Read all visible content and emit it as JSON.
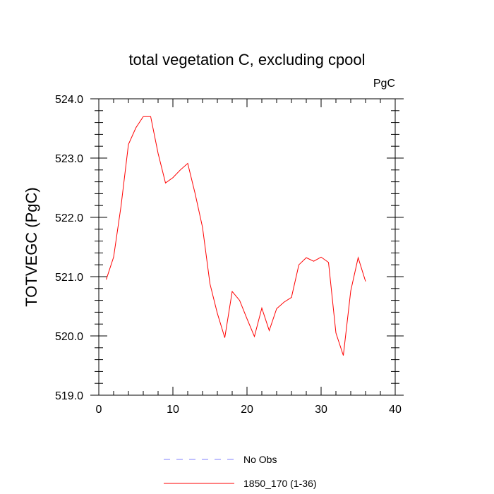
{
  "chart_data": {
    "type": "line",
    "title": "total vegetation C, excluding cpool",
    "units_label": "PgC",
    "ylabel": "TOTVEGC  (PgC)",
    "xlabel": "",
    "xlim": [
      0,
      40
    ],
    "ylim": [
      519.0,
      524.0
    ],
    "x_ticks": [
      0,
      10,
      20,
      30,
      40
    ],
    "x_tick_labels": [
      "0",
      "10",
      "20",
      "30",
      "40"
    ],
    "y_ticks": [
      519.0,
      520.0,
      521.0,
      522.0,
      523.0,
      524.0
    ],
    "y_tick_labels": [
      "519.0",
      "520.0",
      "521.0",
      "522.0",
      "523.0",
      "524.0"
    ],
    "grid": false,
    "legend_position": "bottom",
    "legend": [
      {
        "label": "No Obs",
        "color": "#8080ff",
        "dash": true
      },
      {
        "label": "1850_170 (1-36)",
        "color": "#ff0000",
        "dash": false
      }
    ],
    "series": [
      {
        "name": "1850_170 (1-36)",
        "color": "#ff0000",
        "x": [
          1,
          2,
          3,
          4,
          5,
          6,
          7,
          8,
          9,
          10,
          11,
          12,
          13,
          14,
          15,
          16,
          17,
          18,
          19,
          20,
          21,
          22,
          23,
          24,
          25,
          26,
          27,
          28,
          29,
          30,
          31,
          32,
          33,
          34,
          35,
          36
        ],
        "values": [
          520.95,
          521.33,
          522.19,
          523.23,
          523.51,
          523.7,
          523.7,
          523.08,
          522.58,
          522.67,
          522.8,
          522.91,
          522.4,
          521.83,
          520.88,
          520.38,
          519.97,
          520.75,
          520.6,
          520.29,
          519.99,
          520.47,
          520.09,
          520.46,
          520.57,
          520.65,
          521.2,
          521.32,
          521.26,
          521.33,
          521.24,
          520.05,
          519.67,
          520.76,
          521.32,
          520.92
        ]
      }
    ]
  }
}
